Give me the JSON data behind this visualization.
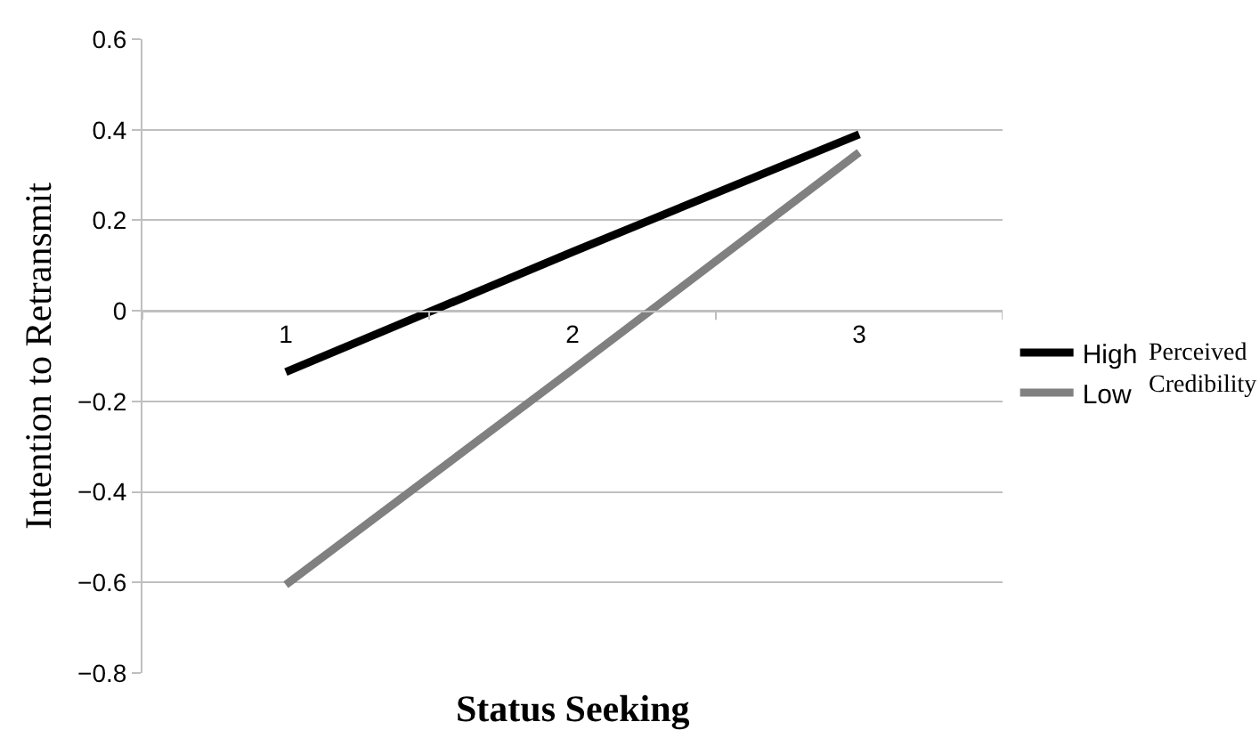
{
  "chart_data": {
    "type": "line",
    "xlabel": "Status Seeking",
    "ylabel": "Intention to Retransmit",
    "legend_title": "Perceived Credibility",
    "categories": [
      "1",
      "2",
      "3"
    ],
    "series": [
      {
        "name": "High",
        "color": "#000000",
        "values": [
          -0.135,
          0.13,
          0.39
        ]
      },
      {
        "name": "Low",
        "color": "#808080",
        "values": [
          -0.605,
          -0.13,
          0.35
        ]
      }
    ],
    "ylim": [
      -0.8,
      0.6
    ],
    "yticks": [
      0.6,
      0.4,
      0.2,
      0,
      {
        "value": -0.2,
        "label": "−0.2"
      },
      {
        "value": -0.4,
        "label": "−0.4"
      },
      {
        "value": -0.6,
        "label": "−0.6"
      },
      {
        "value": -0.8,
        "label": "−0.8"
      }
    ],
    "grid": "y",
    "legend": "right",
    "marker": "none",
    "line_style": "solid"
  }
}
